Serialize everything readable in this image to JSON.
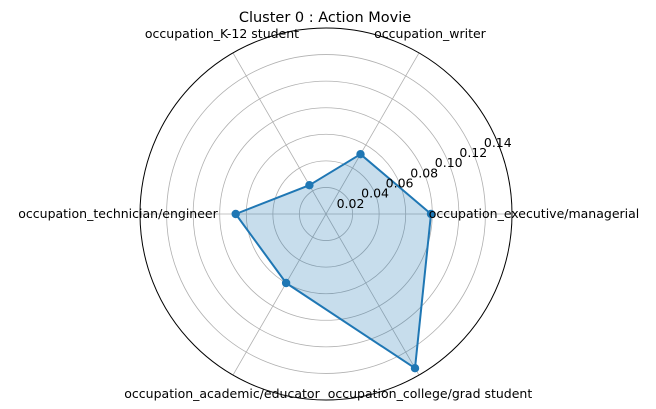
{
  "chart_data": {
    "type": "radar",
    "title": "Cluster 0 : Action Movie",
    "categories": [
      "occupation_executive/managerial",
      "occupation_writer",
      "occupation_K-12 student",
      "occupation_technician/engineer",
      "occupation_academic/educator",
      "occupation_college/grad student"
    ],
    "series": [
      {
        "values": [
          0.079,
          0.052,
          0.025,
          0.068,
          0.06,
          0.134
        ],
        "color": "#1f77b4"
      }
    ],
    "r_ticks": [
      "0.02",
      "0.04",
      "0.06",
      "0.08",
      "0.10",
      "0.12",
      "0.14"
    ],
    "r_tick_values": [
      0.02,
      0.04,
      0.06,
      0.08,
      0.1,
      0.12,
      0.14
    ],
    "rlim": [
      0,
      0.14
    ],
    "grid": true,
    "fill_alpha": 0.25
  }
}
